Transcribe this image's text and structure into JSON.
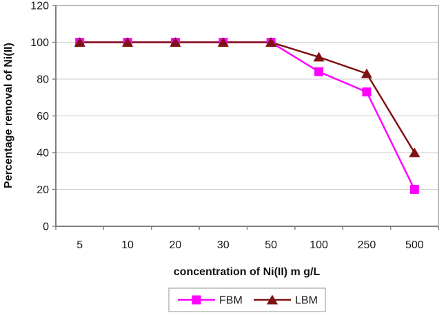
{
  "chart_data": {
    "type": "line",
    "title": "",
    "xlabel": "concentration of Ni(II) m g/L",
    "ylabel": "Percentage removal of Ni(II)",
    "categories": [
      "5",
      "10",
      "20",
      "30",
      "50",
      "100",
      "250",
      "500"
    ],
    "y_ticks": [
      0,
      20,
      40,
      60,
      80,
      100,
      120
    ],
    "ylim": [
      0,
      120
    ],
    "grid": "horizontal-only",
    "legend_position": "bottom-center",
    "series": [
      {
        "name": "FBM",
        "marker": "square",
        "color": "#FF00FF",
        "values": [
          100,
          100,
          100,
          100,
          100,
          84,
          73,
          20
        ]
      },
      {
        "name": "LBM",
        "marker": "triangle",
        "color": "#7F1212",
        "values": [
          100,
          100,
          100,
          100,
          100,
          92,
          83,
          40
        ]
      }
    ],
    "colors": {
      "plot_background": "#FFFFFF",
      "gridline": "#D4D4D4",
      "axis_line": "#808080",
      "plot_border": "#A6A6A6",
      "tick_text": "#1A1A1A",
      "legend_border": "#A6A6A6"
    }
  }
}
